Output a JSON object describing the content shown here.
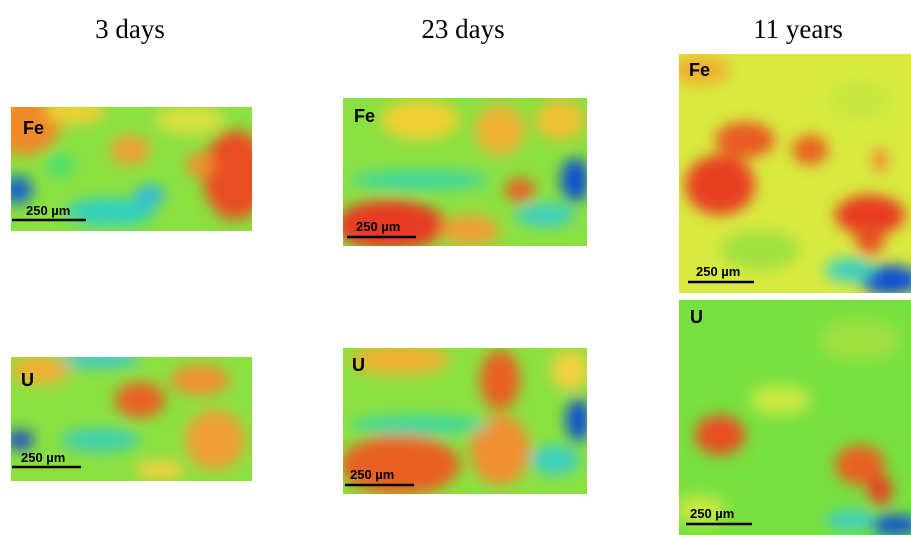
{
  "columns": [
    {
      "title": "3 days",
      "panels": [
        {
          "element": "Fe",
          "scale": "250 µm"
        },
        {
          "element": "U",
          "scale": "250 µm"
        }
      ]
    },
    {
      "title": "23 days",
      "panels": [
        {
          "element": "Fe",
          "scale": "250 µm"
        },
        {
          "element": "U",
          "scale": "250 µm"
        }
      ]
    },
    {
      "title": "11 years",
      "panels": [
        {
          "element": "Fe",
          "scale": "250 µm"
        },
        {
          "element": "U",
          "scale": "250 µm"
        }
      ]
    }
  ]
}
